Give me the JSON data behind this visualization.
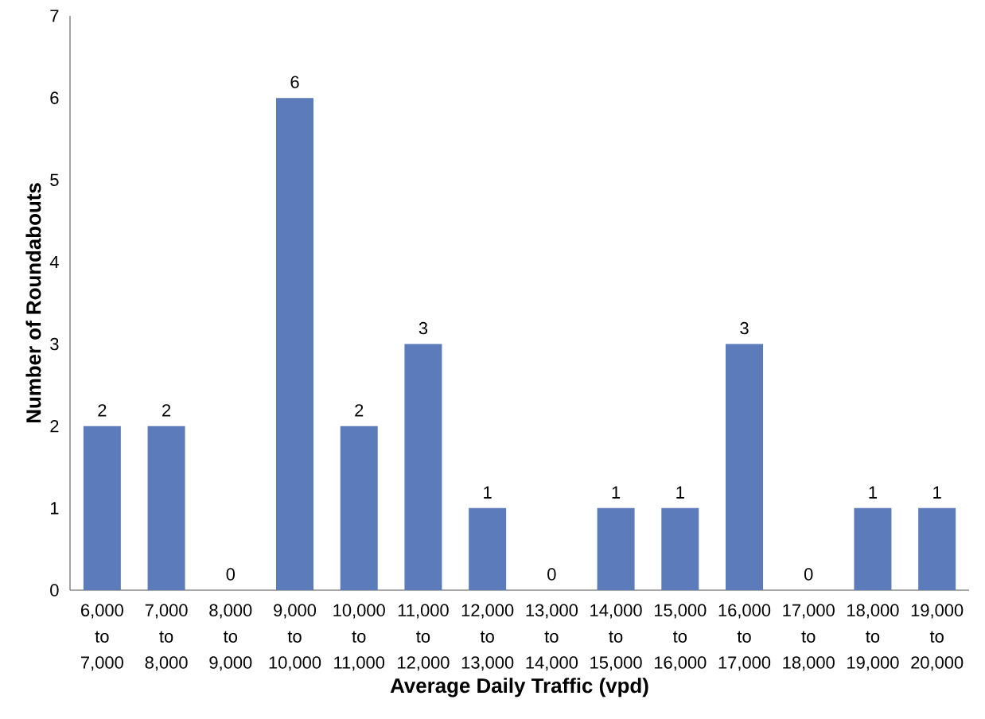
{
  "chart_data": {
    "type": "bar",
    "xlabel": "Average Daily Traffic (vpd)",
    "ylabel": "Number of Roundabouts",
    "categories": [
      "6,000 to 7,000",
      "7,000 to 8,000",
      "8,000 to 9,000",
      "9,000 to 10,000",
      "10,000 to 11,000",
      "11,000 to 12,000",
      "12,000 to 13,000",
      "13,000 to 14,000",
      "14,000 to 15,000",
      "15,000 to 16,000",
      "16,000 to 17,000",
      "17,000 to 18,000",
      "18,000 to 19,000",
      "19,000 to 20,000"
    ],
    "values": [
      2,
      2,
      0,
      6,
      2,
      3,
      1,
      0,
      1,
      1,
      3,
      0,
      1,
      1
    ],
    "color": "#5b7bba",
    "ylim": [
      0,
      7
    ],
    "yticks": [
      0,
      1,
      2,
      3,
      4,
      5,
      6,
      7
    ],
    "data_labels": true
  }
}
